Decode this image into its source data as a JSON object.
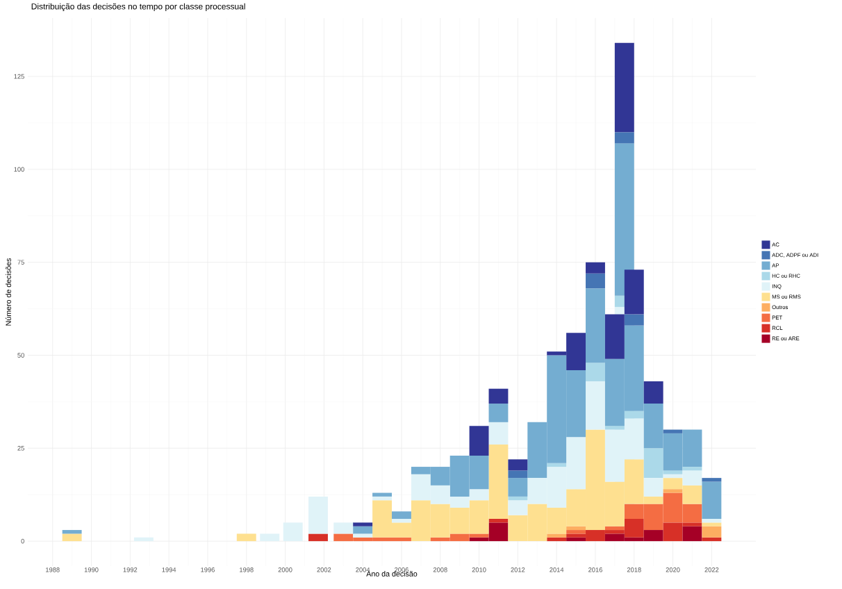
{
  "chart_data": {
    "type": "bar",
    "stacked": true,
    "title": "Distribuição das decisões no tempo por classe processual",
    "xlabel": "Ano da decisão",
    "ylabel": "Número de decisões",
    "x": [
      1989,
      1992.7,
      1998,
      1999.2,
      2000.4,
      2001.7,
      2003,
      2004,
      2005,
      2006,
      2007,
      2008,
      2009,
      2010,
      2011,
      2012,
      2013,
      2014,
      2015,
      2016,
      2017,
      2017.5,
      2018,
      2019,
      2020,
      2021,
      2022
    ],
    "series": [
      {
        "name": "RE ou ARE",
        "color": "#a50026",
        "values": [
          null,
          null,
          null,
          null,
          null,
          null,
          null,
          null,
          null,
          null,
          null,
          null,
          null,
          1,
          5,
          null,
          null,
          null,
          1,
          null,
          2,
          null,
          1,
          3,
          null,
          4,
          null
        ]
      },
      {
        "name": "RCL",
        "color": "#d73027",
        "values": [
          null,
          null,
          null,
          null,
          null,
          2,
          null,
          null,
          null,
          null,
          null,
          null,
          null,
          null,
          1,
          null,
          null,
          1,
          1,
          3,
          1,
          null,
          5,
          null,
          5,
          1,
          1
        ]
      },
      {
        "name": "PET",
        "color": "#f46d43",
        "values": [
          null,
          null,
          null,
          null,
          null,
          null,
          2,
          1,
          1,
          1,
          null,
          1,
          2,
          1,
          null,
          null,
          null,
          null,
          1,
          null,
          1,
          null,
          4,
          7,
          8,
          5,
          null
        ]
      },
      {
        "name": "Outros",
        "color": "#fdae61",
        "values": [
          null,
          null,
          null,
          null,
          null,
          null,
          null,
          null,
          null,
          null,
          null,
          null,
          null,
          null,
          null,
          null,
          null,
          1,
          1,
          null,
          null,
          null,
          null,
          null,
          1,
          null,
          3
        ]
      },
      {
        "name": "MS ou RMS",
        "color": "#fee090",
        "values": [
          2,
          null,
          2,
          null,
          null,
          null,
          null,
          null,
          10,
          4,
          11,
          9,
          7,
          9,
          20,
          7,
          10,
          7,
          10,
          27,
          12,
          null,
          12,
          2,
          3,
          5,
          1
        ]
      },
      {
        "name": "INQ",
        "color": "#e0f3f8",
        "values": [
          null,
          1,
          null,
          2,
          5,
          10,
          3,
          1,
          1,
          1,
          7,
          5,
          3,
          3,
          6,
          4,
          7,
          11,
          14,
          13,
          14,
          63,
          11,
          5,
          1,
          4,
          1
        ]
      },
      {
        "name": "HC ou RHC",
        "color": "#abd9e9",
        "values": [
          null,
          null,
          null,
          null,
          null,
          null,
          null,
          null,
          null,
          null,
          null,
          null,
          null,
          null,
          null,
          1,
          null,
          1,
          null,
          5,
          1,
          3,
          2,
          8,
          1,
          1,
          null
        ]
      },
      {
        "name": "AP",
        "color": "#74add1",
        "values": [
          1,
          null,
          null,
          null,
          null,
          null,
          null,
          2,
          1,
          2,
          2,
          5,
          11,
          9,
          5,
          5,
          15,
          29,
          18,
          20,
          18,
          41,
          23,
          12,
          10,
          10,
          10
        ]
      },
      {
        "name": "ADC, ADPF ou ADI",
        "color": "#4575b4",
        "values": [
          null,
          null,
          null,
          null,
          null,
          null,
          null,
          null,
          null,
          null,
          null,
          null,
          null,
          null,
          null,
          2,
          null,
          null,
          null,
          4,
          null,
          3,
          3,
          null,
          1,
          null,
          1
        ]
      },
      {
        "name": "AC",
        "color": "#313695",
        "values": [
          null,
          null,
          null,
          null,
          null,
          null,
          null,
          1,
          null,
          null,
          null,
          null,
          null,
          8,
          4,
          3,
          null,
          1,
          10,
          3,
          12,
          24,
          12,
          6,
          null,
          null,
          null
        ]
      }
    ],
    "xlim": [
      1986.72,
      2024.28
    ],
    "ylim": [
      -6.7,
      140.7
    ],
    "xticks": [
      1988,
      1990,
      1992,
      1994,
      1996,
      1998,
      2000,
      2002,
      2004,
      2006,
      2008,
      2010,
      2012,
      2014,
      2016,
      2018,
      2020,
      2022
    ],
    "yticks": [
      0,
      25,
      50,
      75,
      100,
      125
    ],
    "grid": true,
    "legend": "right"
  }
}
